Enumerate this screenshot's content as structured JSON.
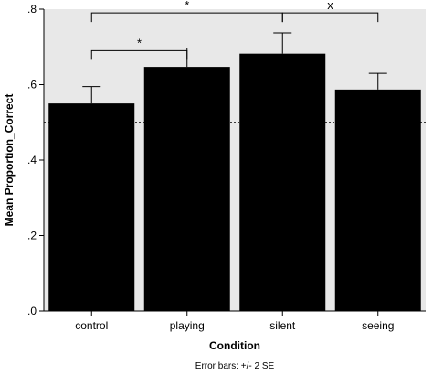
{
  "chart_data": {
    "type": "bar",
    "title": "",
    "xlabel": "Condition",
    "ylabel": "Mean Proportion_Correct",
    "categories": [
      "control",
      "playing",
      "silent",
      "seeing"
    ],
    "values": [
      0.55,
      0.647,
      0.682,
      0.587
    ],
    "error_plus_minus": [
      0.045,
      0.05,
      0.055,
      0.043
    ],
    "ylim": [
      0,
      0.8
    ],
    "yticks": [
      0,
      0.2,
      0.4,
      0.6,
      0.8
    ],
    "ytick_labels": [
      ".0",
      ".2",
      ".4",
      ".6",
      ".8"
    ],
    "reference_line": 0.5,
    "grid": false,
    "plot_background": "#e8e8e8",
    "bar_color": "#000000",
    "error_bar_note": "Error bars: +/- 2 SE",
    "significance_brackets": [
      {
        "from": "control",
        "to": "playing",
        "label": "*",
        "level": 0.69
      },
      {
        "from": "control",
        "to": "silent",
        "label": "*",
        "level": 0.79
      },
      {
        "from": "silent",
        "to": "seeing",
        "label": "x",
        "level": 0.79
      }
    ]
  }
}
